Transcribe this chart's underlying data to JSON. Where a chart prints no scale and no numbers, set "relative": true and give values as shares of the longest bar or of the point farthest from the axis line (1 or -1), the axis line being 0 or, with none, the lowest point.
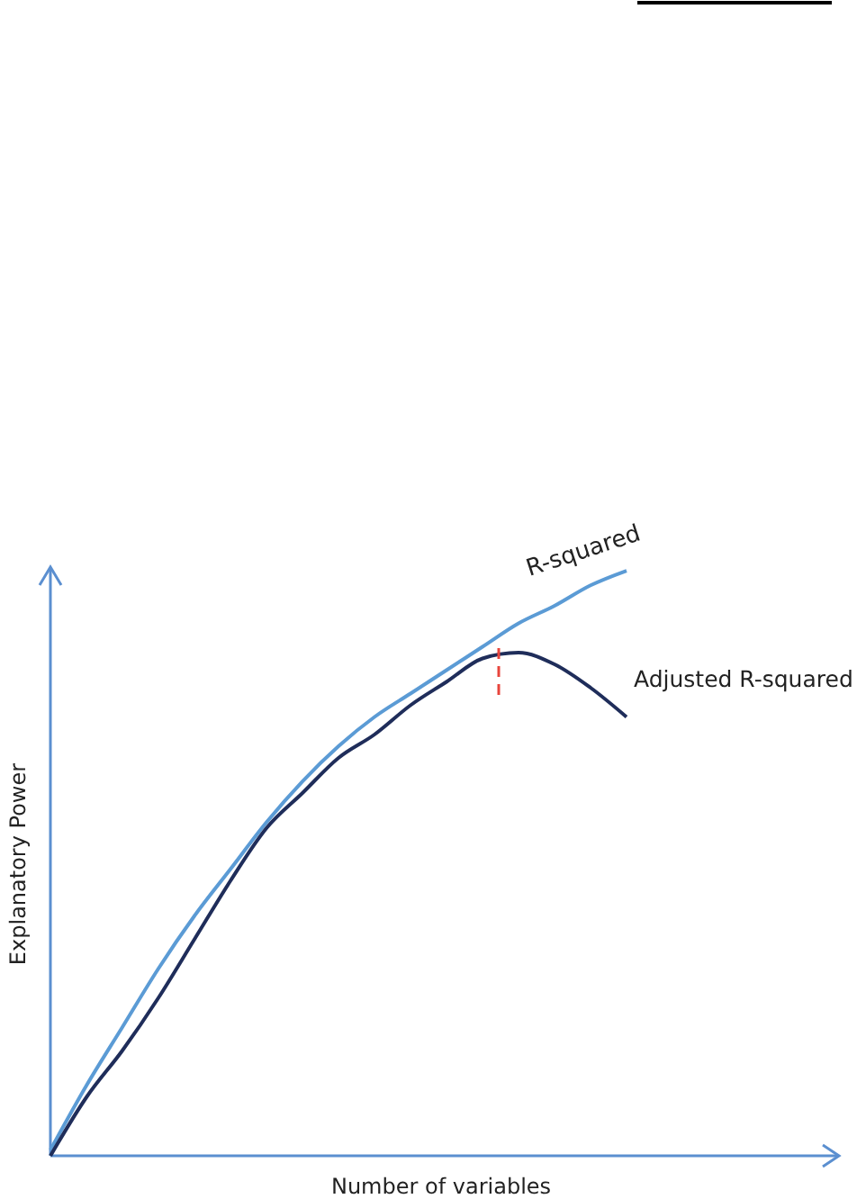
{
  "chart_data": {
    "type": "line",
    "relative": true,
    "xlabel": "Number of variables",
    "ylabel": "Explanatory Power",
    "categories": [
      null,
      null,
      null,
      null,
      null,
      null,
      null,
      null,
      null,
      null,
      null,
      null,
      null,
      null,
      null,
      null,
      null
    ],
    "series": [
      {
        "name": "R-squared",
        "color": "#5b9bd5",
        "values": [
          0.01,
          0.12,
          0.22,
          0.32,
          0.41,
          0.49,
          0.57,
          0.64,
          0.7,
          0.75,
          0.79,
          0.83,
          0.87,
          0.91,
          0.94,
          0.975,
          1.0
        ]
      },
      {
        "name": "Adjusted R-squared",
        "color": "#1f2d5a",
        "values": [
          0,
          0.1,
          0.18,
          0.27,
          0.37,
          0.47,
          0.56,
          0.62,
          0.68,
          0.72,
          0.77,
          0.81,
          0.85,
          0.86,
          0.84,
          0.8,
          0.75
        ]
      }
    ],
    "marker": "none",
    "line_style": "solid"
  }
}
